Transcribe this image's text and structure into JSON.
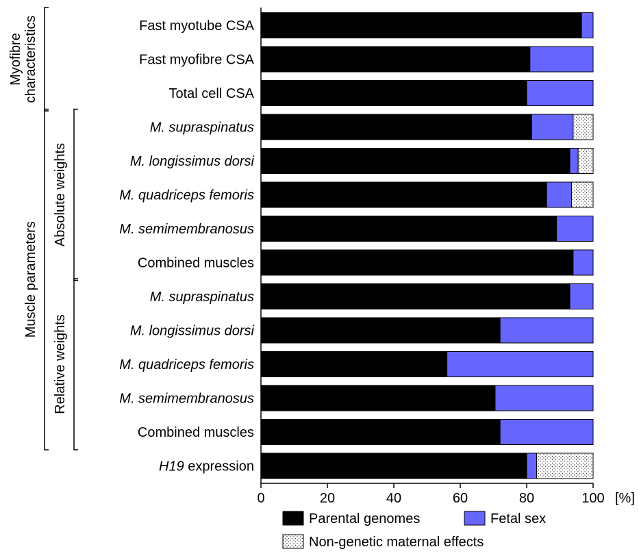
{
  "chart_data": {
    "type": "bar",
    "orientation": "horizontal",
    "stacked": true,
    "categories": [
      {
        "prefix": "",
        "italic": "",
        "suffix": "Fast myotube CSA"
      },
      {
        "prefix": "",
        "italic": "",
        "suffix": "Fast myofibre CSA"
      },
      {
        "prefix": "",
        "italic": "",
        "suffix": "Total cell CSA"
      },
      {
        "prefix": "",
        "italic": "M. supraspinatus",
        "suffix": ""
      },
      {
        "prefix": "",
        "italic": "M. longissimus dorsi",
        "suffix": ""
      },
      {
        "prefix": "",
        "italic": "M. quadriceps femoris",
        "suffix": ""
      },
      {
        "prefix": "",
        "italic": "M. semimembranosus",
        "suffix": ""
      },
      {
        "prefix": "",
        "italic": "",
        "suffix": "Combined muscles"
      },
      {
        "prefix": "",
        "italic": "M. supraspinatus",
        "suffix": ""
      },
      {
        "prefix": "",
        "italic": "M. longissimus dorsi",
        "suffix": ""
      },
      {
        "prefix": "",
        "italic": "M. quadriceps femoris",
        "suffix": ""
      },
      {
        "prefix": "",
        "italic": "M. semimembranosus",
        "suffix": ""
      },
      {
        "prefix": "",
        "italic": "",
        "suffix": "Combined muscles"
      },
      {
        "prefix": "",
        "italic": "H19",
        "suffix": " expression"
      }
    ],
    "series": [
      {
        "name": "Parental genomes",
        "color": "#000000",
        "pattern": "solid",
        "values": [
          96.5,
          81,
          80,
          81.5,
          93,
          86,
          89,
          94,
          93,
          72,
          56,
          70.5,
          72,
          80
        ]
      },
      {
        "name": "Fetal sex",
        "color": "#6666ff",
        "pattern": "solid",
        "values": [
          3.5,
          19,
          20,
          12.5,
          2.5,
          7.5,
          11,
          6,
          7,
          28,
          44,
          29.5,
          28,
          3
        ]
      },
      {
        "name": "Non-genetic maternal effects",
        "color": "#ffffff",
        "pattern": "dots",
        "values": [
          0,
          0,
          0,
          6,
          4.5,
          6.5,
          0,
          0,
          0,
          0,
          0,
          0,
          0,
          17
        ]
      }
    ],
    "xlim": [
      0,
      100
    ],
    "xticks": [
      "0",
      "20",
      "40",
      "60",
      "80",
      "100"
    ],
    "xunit": "[%]",
    "groups": [
      {
        "label": "Myofibre",
        "label2": "characteristics",
        "start": 0,
        "end": 2,
        "level": "outer"
      },
      {
        "label": "Muscle parameters",
        "label2": "",
        "start": 3,
        "end": 12,
        "level": "outer"
      },
      {
        "label": "Absolute weights",
        "label2": "",
        "start": 3,
        "end": 7,
        "level": "inner"
      },
      {
        "label": "Relative weights",
        "label2": "",
        "start": 8,
        "end": 12,
        "level": "inner"
      }
    ],
    "legend": {
      "placement": "bottom",
      "items": [
        "Parental genomes",
        "Fetal sex",
        "Non-genetic maternal effects"
      ]
    },
    "grid": false
  }
}
